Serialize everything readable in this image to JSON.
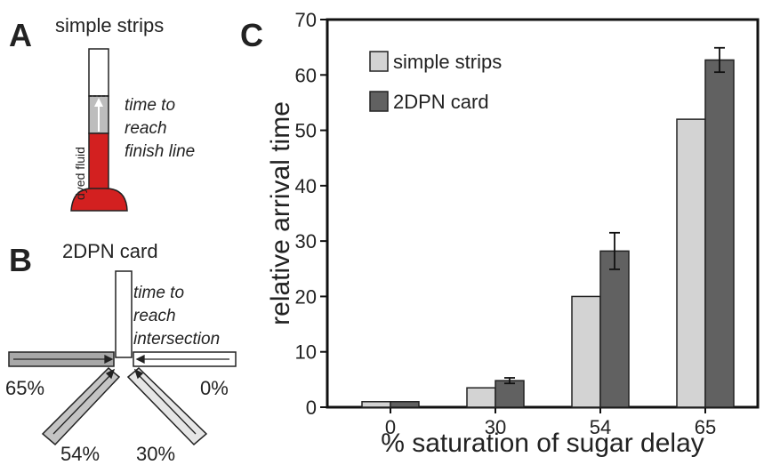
{
  "panel_a": {
    "label": "A",
    "title": "simple strips",
    "fluid_label": "dyed fluid",
    "note_lines": [
      "time to",
      "reach",
      "finish line"
    ]
  },
  "panel_b": {
    "label": "B",
    "title": "2DPN card",
    "note_lines": [
      "time to",
      "reach",
      "intersection"
    ],
    "arm_labels": [
      "65%",
      "0%",
      "54%",
      "30%"
    ]
  },
  "chart_data": {
    "type": "bar",
    "panel_label": "C",
    "x_label": "% saturation of sugar delay",
    "y_label": "relative arrival time",
    "categories": [
      "0",
      "30",
      "54",
      "65"
    ],
    "series": [
      {
        "name": "simple strips",
        "color": "#d3d3d3",
        "values": [
          1,
          3.5,
          20,
          52
        ]
      },
      {
        "name": "2DPN card",
        "color": "#616161",
        "values": [
          1,
          4.8,
          28.2,
          62.7
        ],
        "errors": [
          null,
          0.5,
          3.3,
          2.2
        ]
      }
    ],
    "ylim": [
      0,
      70
    ],
    "yticks": [
      0,
      10,
      20,
      30,
      40,
      50,
      60,
      70
    ],
    "legend": "upper left"
  }
}
